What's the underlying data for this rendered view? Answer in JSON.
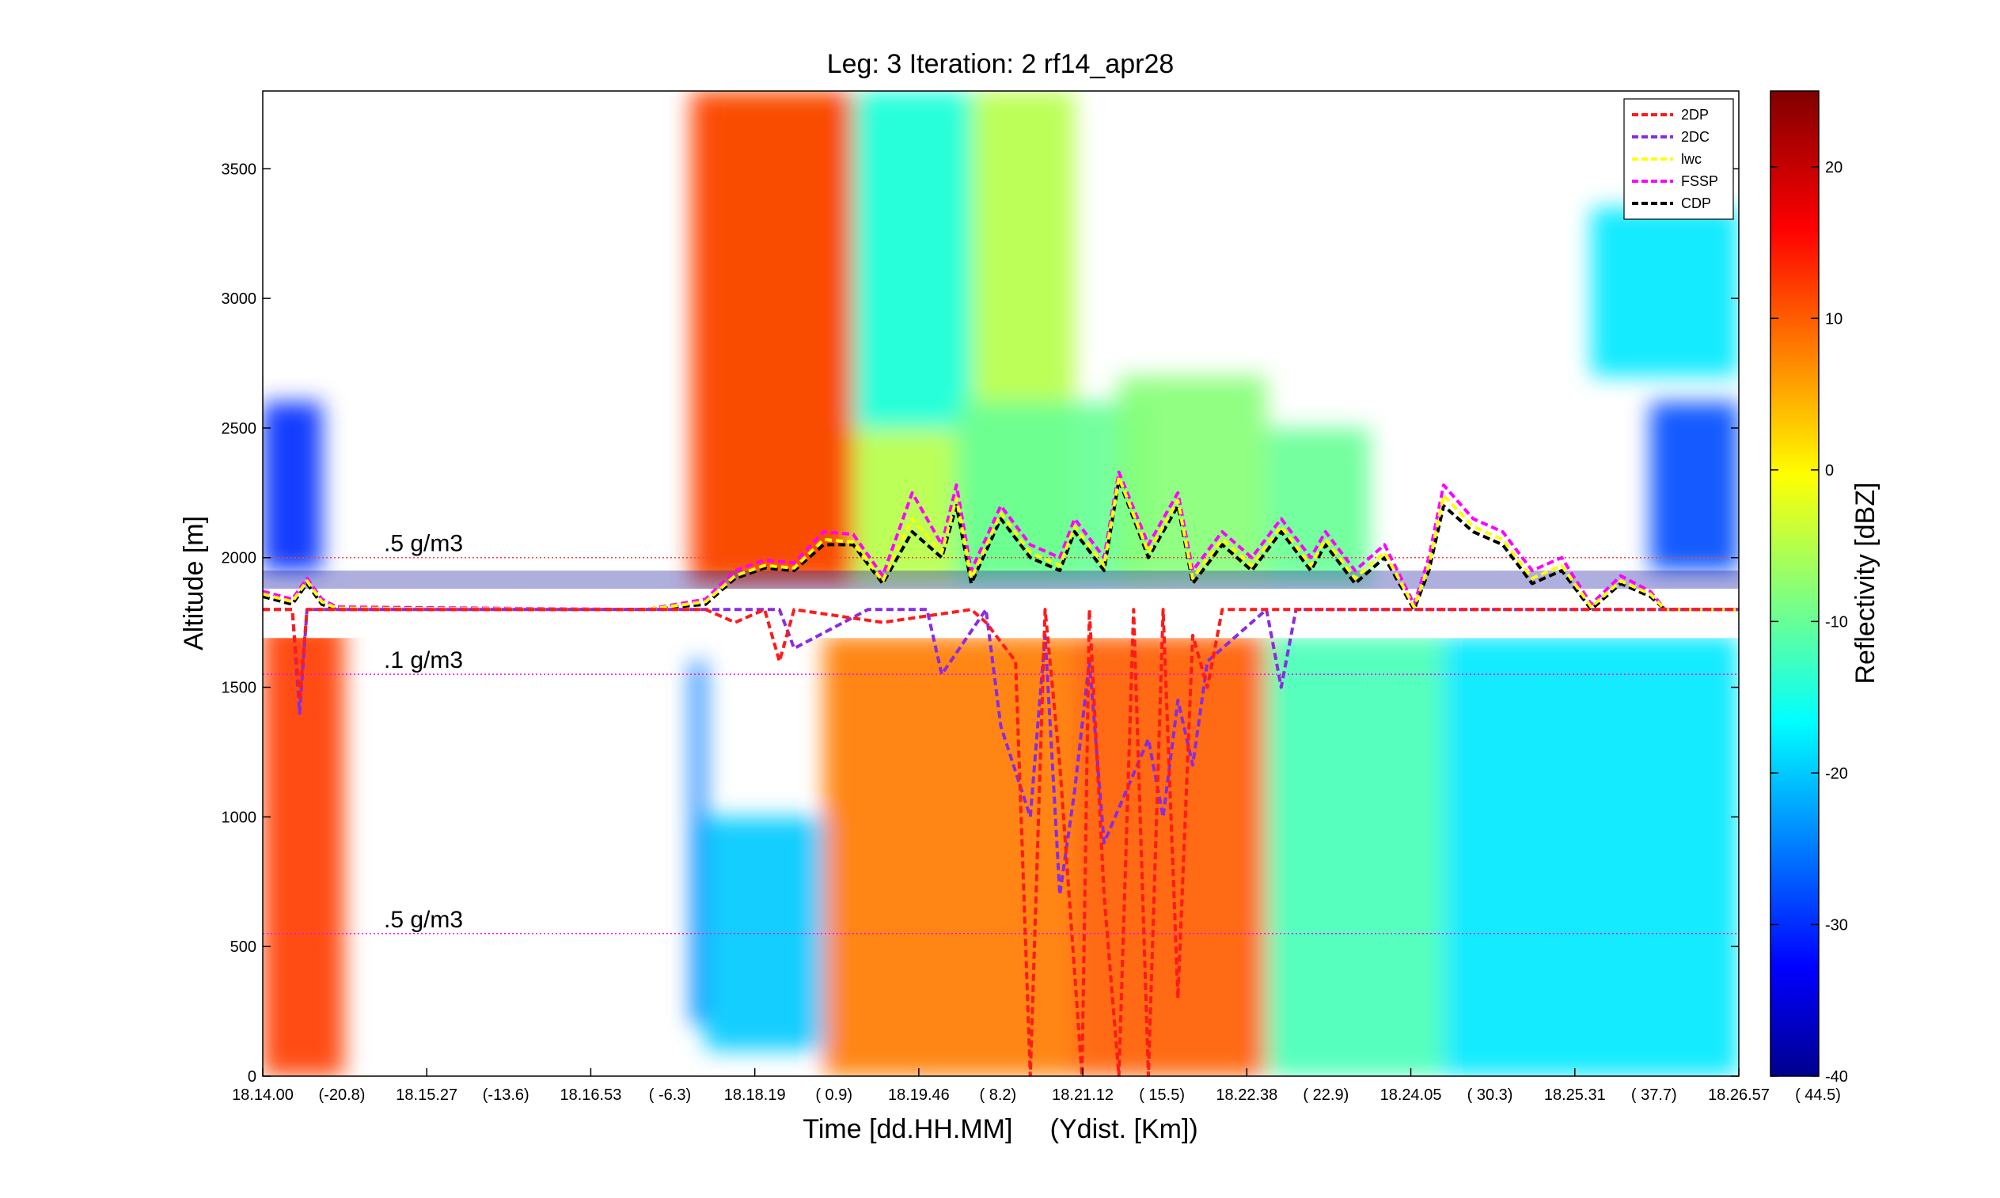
{
  "chart_data": {
    "type": "heatmap",
    "title": "Leg: 3  Iteration: 2  rf14_apr28",
    "xlabel": "Time [dd.HH.MM]     (Ydist. [Km])",
    "ylabel": "Altitude [m]",
    "colorbar_label": "Reflectivity [dBZ]",
    "ylim": [
      0,
      3800
    ],
    "clim": [
      -40,
      25
    ],
    "y_ticks": [
      0,
      500,
      1000,
      1500,
      2000,
      2500,
      3000,
      3500
    ],
    "colorbar_ticks": [
      -40,
      -30,
      -20,
      -10,
      0,
      10,
      20
    ],
    "x_ticks": [
      {
        "time": "18.14.00",
        "ydist": "(-20.8)"
      },
      {
        "time": "18.15.27",
        "ydist": "(-13.6)"
      },
      {
        "time": "18.16.53",
        "ydist": "( -6.3)"
      },
      {
        "time": "18.18.19",
        "ydist": "(  0.9)"
      },
      {
        "time": "18.19.46",
        "ydist": "(  8.2)"
      },
      {
        "time": "18.21.12",
        "ydist": "( 15.5)"
      },
      {
        "time": "18.22.38",
        "ydist": "( 22.9)"
      },
      {
        "time": "18.24.05",
        "ydist": "( 30.3)"
      },
      {
        "time": "18.25.31",
        "ydist": "( 37.7)"
      },
      {
        "time": "18.26.57",
        "ydist": "( 44.5)"
      }
    ],
    "legend": [
      {
        "name": "2DP",
        "color": "#ff1a1a"
      },
      {
        "name": "2DC",
        "color": "#8a2be2"
      },
      {
        "name": "lwc",
        "color": "#ffff00"
      },
      {
        "name": "FSSP",
        "color": "#ff00ff"
      },
      {
        "name": "CDP",
        "color": "#000000"
      }
    ],
    "legend_placement": "top-right",
    "reference_lines": [
      {
        "label": ".5 g/m3",
        "altitude": 2000,
        "color": "#ff4040"
      },
      {
        "label": ".1 g/m3",
        "altitude": 1550,
        "color": "#ff00ff"
      },
      {
        "label": ".5 g/m3",
        "altitude": 550,
        "color": "#ff00ff"
      }
    ],
    "flight_altitude": 1800,
    "reflectivity_regions": [
      {
        "x_range": [
          0.0,
          0.055
        ],
        "alt_range": [
          0,
          1750
        ],
        "dbz": 12
      },
      {
        "x_range": [
          0.0,
          0.04
        ],
        "alt_range": [
          1950,
          2600
        ],
        "dbz": -30
      },
      {
        "x_range": [
          0.29,
          0.3
        ],
        "alt_range": [
          200,
          1600
        ],
        "dbz": -25
      },
      {
        "x_range": [
          0.3,
          0.38
        ],
        "alt_range": [
          100,
          1000
        ],
        "dbz": -20
      },
      {
        "x_range": [
          0.38,
          0.55
        ],
        "alt_range": [
          0,
          1700
        ],
        "dbz": 8
      },
      {
        "x_range": [
          0.3,
          0.55
        ],
        "alt_range": [
          1900,
          3800
        ],
        "dbz": -5
      },
      {
        "x_range": [
          0.29,
          0.4
        ],
        "alt_range": [
          1900,
          3800
        ],
        "dbz": 12
      },
      {
        "x_range": [
          0.4,
          0.48
        ],
        "alt_range": [
          2500,
          3800
        ],
        "dbz": -15
      },
      {
        "x_range": [
          0.47,
          0.6
        ],
        "alt_range": [
          1900,
          2600
        ],
        "dbz": -10
      },
      {
        "x_range": [
          0.55,
          0.68
        ],
        "alt_range": [
          0,
          1700
        ],
        "dbz": 10
      },
      {
        "x_range": [
          0.58,
          0.68
        ],
        "alt_range": [
          1900,
          2700
        ],
        "dbz": -8
      },
      {
        "x_range": [
          0.68,
          0.8
        ],
        "alt_range": [
          0,
          1700
        ],
        "dbz": -12
      },
      {
        "x_range": [
          0.68,
          0.75
        ],
        "alt_range": [
          1900,
          2500
        ],
        "dbz": -10
      },
      {
        "x_range": [
          0.8,
          1.0
        ],
        "alt_range": [
          0,
          1700
        ],
        "dbz": -18
      },
      {
        "x_range": [
          0.9,
          1.0
        ],
        "alt_range": [
          2700,
          3350
        ],
        "dbz": -18
      },
      {
        "x_range": [
          0.94,
          1.0
        ],
        "alt_range": [
          1950,
          2600
        ],
        "dbz": -28
      }
    ],
    "series": [
      {
        "name": "CDP",
        "x": [
          0.0,
          0.02,
          0.03,
          0.04,
          0.05,
          0.26,
          0.3,
          0.32,
          0.34,
          0.36,
          0.38,
          0.4,
          0.42,
          0.44,
          0.46,
          0.47,
          0.48,
          0.5,
          0.52,
          0.54,
          0.55,
          0.57,
          0.58,
          0.6,
          0.62,
          0.63,
          0.65,
          0.67,
          0.69,
          0.71,
          0.72,
          0.74,
          0.76,
          0.78,
          0.79,
          0.8,
          0.82,
          0.84,
          0.86,
          0.88,
          0.9,
          0.92,
          0.94,
          0.95,
          0.96,
          0.98,
          1.0
        ],
        "y": [
          1850,
          1820,
          1900,
          1820,
          1800,
          1800,
          1820,
          1920,
          1960,
          1950,
          2050,
          2050,
          1900,
          2100,
          2000,
          2200,
          1900,
          2150,
          2000,
          1950,
          2100,
          1950,
          2300,
          2000,
          2200,
          1900,
          2050,
          1950,
          2100,
          1950,
          2050,
          1900,
          2000,
          1800,
          1950,
          2200,
          2100,
          2050,
          1900,
          1950,
          1800,
          1900,
          1850,
          1800,
          1800,
          1800,
          1800
        ]
      },
      {
        "name": "FSSP",
        "x": [
          0.0,
          0.02,
          0.03,
          0.04,
          0.05,
          0.26,
          0.3,
          0.32,
          0.34,
          0.36,
          0.38,
          0.4,
          0.42,
          0.44,
          0.46,
          0.47,
          0.48,
          0.5,
          0.52,
          0.54,
          0.55,
          0.57,
          0.58,
          0.6,
          0.62,
          0.63,
          0.65,
          0.67,
          0.69,
          0.71,
          0.72,
          0.74,
          0.76,
          0.78,
          0.79,
          0.8,
          0.82,
          0.84,
          0.86,
          0.88,
          0.9,
          0.92,
          0.94,
          0.95,
          0.96,
          0.98,
          1.0
        ],
        "y": [
          1870,
          1840,
          1920,
          1840,
          1810,
          1800,
          1840,
          1950,
          1990,
          1980,
          2100,
          2090,
          1930,
          2250,
          2050,
          2280,
          1950,
          2200,
          2050,
          2000,
          2150,
          2000,
          2330,
          2050,
          2250,
          1950,
          2100,
          2000,
          2150,
          2000,
          2100,
          1950,
          2050,
          1820,
          2000,
          2280,
          2150,
          2100,
          1950,
          2000,
          1820,
          1930,
          1870,
          1800,
          1800,
          1800,
          1800
        ]
      },
      {
        "name": "lwc",
        "x": [
          0.0,
          0.02,
          0.03,
          0.04,
          0.05,
          0.26,
          0.3,
          0.32,
          0.34,
          0.36,
          0.38,
          0.4,
          0.42,
          0.44,
          0.46,
          0.47,
          0.48,
          0.5,
          0.52,
          0.54,
          0.55,
          0.57,
          0.58,
          0.6,
          0.62,
          0.63,
          0.65,
          0.67,
          0.69,
          0.71,
          0.72,
          0.74,
          0.76,
          0.78,
          0.79,
          0.8,
          0.82,
          0.84,
          0.86,
          0.88,
          0.9,
          0.92,
          0.94,
          0.95,
          0.96,
          0.98,
          1.0
        ],
        "y": [
          1860,
          1830,
          1910,
          1830,
          1805,
          1800,
          1830,
          1930,
          1970,
          1960,
          2070,
          2060,
          1910,
          2150,
          2020,
          2230,
          1920,
          2170,
          2020,
          1970,
          2120,
          1970,
          2310,
          2020,
          2220,
          1920,
          2070,
          1970,
          2120,
          1970,
          2070,
          1920,
          2020,
          1810,
          1970,
          2240,
          2120,
          2070,
          1920,
          1970,
          1810,
          1910,
          1860,
          1800,
          1800,
          1800,
          1800
        ]
      },
      {
        "name": "2DC",
        "x": [
          0.0,
          0.02,
          0.025,
          0.03,
          0.05,
          0.3,
          0.31,
          0.35,
          0.36,
          0.41,
          0.45,
          0.46,
          0.49,
          0.5,
          0.52,
          0.53,
          0.54,
          0.55,
          0.56,
          0.57,
          0.6,
          0.61,
          0.62,
          0.63,
          0.64,
          0.68,
          0.69,
          0.7,
          0.7,
          1.0
        ],
        "y": [
          1800,
          1800,
          1400,
          1800,
          1800,
          1800,
          1800,
          1800,
          1650,
          1800,
          1800,
          1550,
          1800,
          1350,
          1000,
          1700,
          700,
          1100,
          1600,
          900,
          1300,
          1000,
          1450,
          1200,
          1600,
          1800,
          1500,
          1800,
          1800,
          1800
        ]
      },
      {
        "name": "2DP",
        "x": [
          0.0,
          0.02,
          0.025,
          0.03,
          0.05,
          0.3,
          0.32,
          0.34,
          0.35,
          0.36,
          0.42,
          0.48,
          0.49,
          0.51,
          0.52,
          0.53,
          0.54,
          0.555,
          0.56,
          0.57,
          0.58,
          0.59,
          0.6,
          0.61,
          0.62,
          0.63,
          0.64,
          0.65,
          0.66,
          0.68,
          1.0
        ],
        "y": [
          1800,
          1800,
          1450,
          1800,
          1800,
          1800,
          1750,
          1800,
          1600,
          1800,
          1750,
          1800,
          1750,
          1600,
          0,
          1800,
          1200,
          0,
          1800,
          700,
          0,
          1800,
          0,
          1800,
          300,
          1700,
          1500,
          1800,
          1800,
          1800,
          1800
        ]
      }
    ]
  }
}
